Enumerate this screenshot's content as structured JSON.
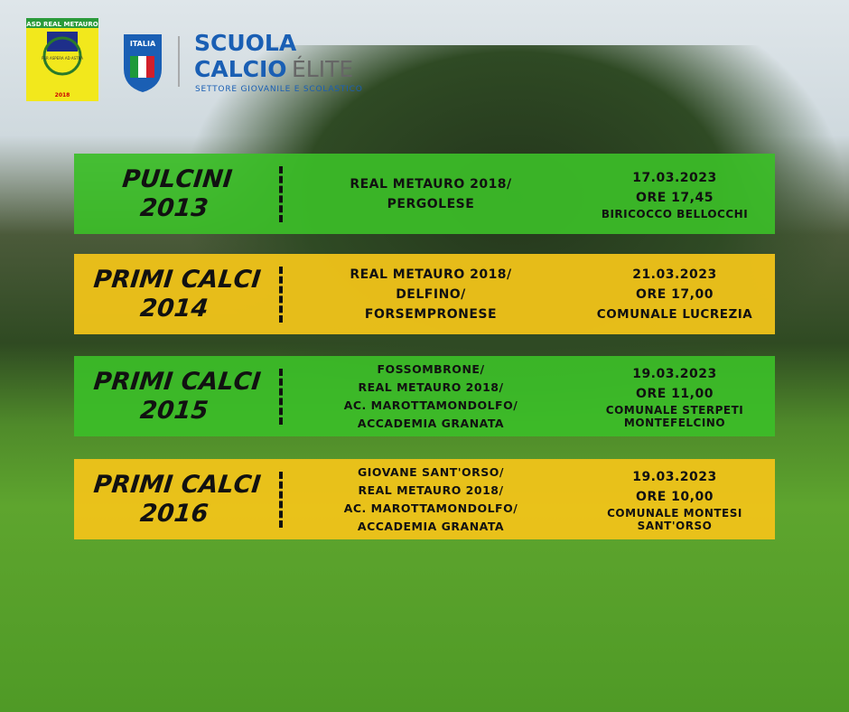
{
  "header": {
    "club_logo": {
      "name": "ASD REAL METAURO",
      "motto": "PER ASPERA AD ASTRA",
      "year": "2018"
    },
    "federation_logo": {
      "text": "ITALIA"
    },
    "program": {
      "line1": "SCUOLA",
      "line2": "CALCIO",
      "accent": "ÉLITE",
      "subtitle": "SETTORE GIOVANILE E SCOLASTICO"
    }
  },
  "rows": [
    {
      "category": [
        "PULCINI",
        "2013"
      ],
      "teams": [
        "REAL METAURO 2018/",
        "PERGOLESE"
      ],
      "date": "17.03.2023",
      "time": "ORE 17,45",
      "venue": [
        "BIRICOCCO BELLOCCHI"
      ],
      "color": "green"
    },
    {
      "category": [
        "PRIMI CALCI",
        "2014"
      ],
      "teams": [
        "REAL METAURO 2018/",
        "DELFINO/",
        "FORSEMPRONESE"
      ],
      "date": "21.03.2023",
      "time": "ORE 17,00",
      "venue": [
        "COMUNALE LUCREZIA"
      ],
      "color": "yellow"
    },
    {
      "category": [
        "PRIMI CALCI",
        "2015"
      ],
      "teams": [
        "FOSSOMBRONE/",
        "REAL METAURO 2018/",
        "AC. MAROTTAMONDOLFO/",
        "ACCADEMIA GRANATA"
      ],
      "date": "19.03.2023",
      "time": "ORE 11,00",
      "venue": [
        "COMUNALE STERPETI",
        "MONTEFELCINO"
      ],
      "color": "green"
    },
    {
      "category": [
        "PRIMI CALCI",
        "2016"
      ],
      "teams": [
        "GIOVANE SANT'ORSO/",
        "REAL METAURO 2018/",
        "AC. MAROTTAMONDOLFO/",
        "ACCADEMIA GRANATA"
      ],
      "date": "19.03.2023",
      "time": "ORE 10,00",
      "venue": [
        "COMUNALE MONTESI",
        "SANT'ORSO"
      ],
      "color": "yellow"
    }
  ]
}
